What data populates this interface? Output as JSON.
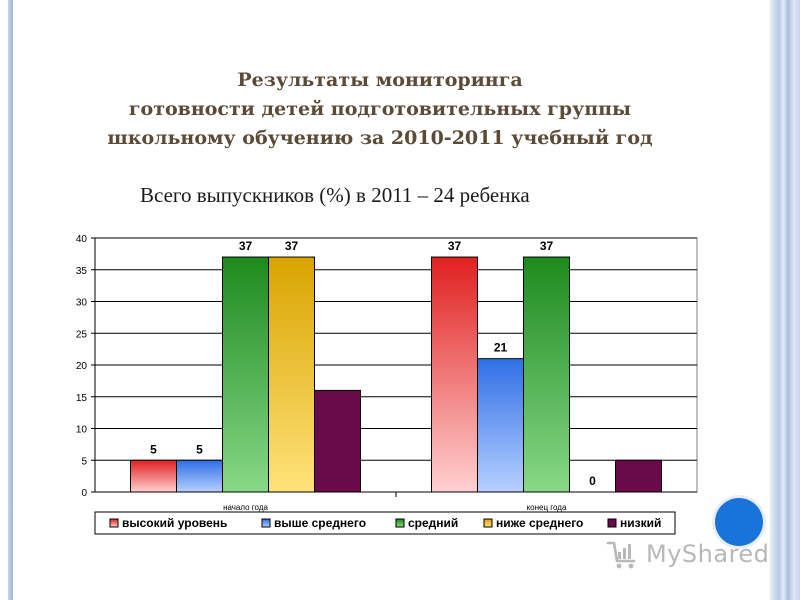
{
  "slide": {
    "title_lines": [
      "Результаты мониторинга",
      "готовности детей подготовительных группы",
      "школьному обучению  за 2010-2011 учебный год"
    ],
    "subtitle": "Всего выпускников (%) в 2011 – 24 ребенка",
    "logo_text": "MyShared"
  },
  "colors": {
    "title": "#5b4a36",
    "frame": "#9fb4d6",
    "accent_dot": "#1a73d9"
  },
  "chart_data": {
    "type": "bar",
    "title": "",
    "xlabel": "",
    "ylabel": "",
    "categories": [
      "начало года",
      "конец года"
    ],
    "ylim": [
      0,
      40
    ],
    "yticks": [
      0,
      5,
      10,
      15,
      20,
      25,
      30,
      35,
      40
    ],
    "grid": true,
    "legend_position": "bottom",
    "series": [
      {
        "name": "высокий уровень",
        "values": [
          5,
          37
        ],
        "labels": [
          "5",
          "37"
        ],
        "color": "#e02020",
        "light": "#ffd0d0"
      },
      {
        "name": "выше среднего",
        "values": [
          5,
          21
        ],
        "labels": [
          "5",
          "21"
        ],
        "color": "#2f6fe6",
        "light": "#b8d0ff"
      },
      {
        "name": "средний",
        "values": [
          37,
          37
        ],
        "labels": [
          "37",
          "37"
        ],
        "color": "#1e8a1e",
        "light": "#88d888"
      },
      {
        "name": "ниже среднего",
        "values": [
          37,
          0
        ],
        "labels": [
          "37",
          "0"
        ],
        "color": "#d9a400",
        "light": "#ffe27a"
      },
      {
        "name": "низкий",
        "values": [
          16,
          5
        ],
        "labels": [
          "",
          ""
        ],
        "color": "#6a0a4a",
        "light": "#6a0a4a"
      }
    ]
  }
}
